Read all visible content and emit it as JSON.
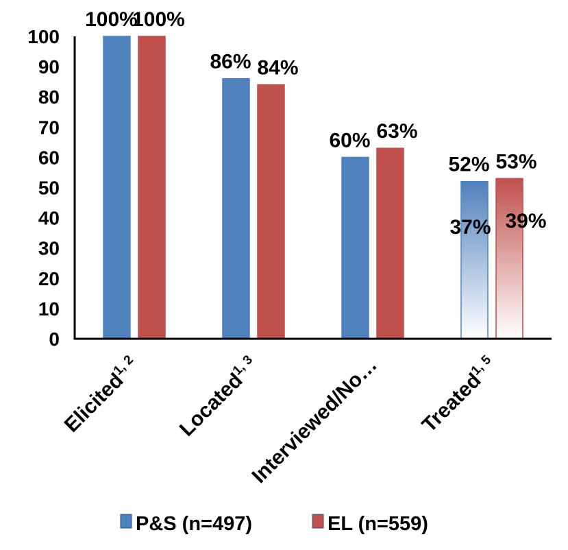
{
  "chart_data": {
    "type": "bar",
    "title": "",
    "xlabel": "",
    "ylabel": "",
    "ylim": [
      0,
      100
    ],
    "yticks": [
      0,
      10,
      20,
      30,
      40,
      50,
      60,
      70,
      80,
      90,
      100
    ],
    "grid": false,
    "legend": "bottom",
    "categories": [
      "Elicited",
      "Located",
      "Interviewed/No…",
      "Treated"
    ],
    "category_superscripts": [
      "1, 2",
      "1, 3",
      "",
      "1, 5"
    ],
    "series": [
      {
        "name": "P&S (n=497)",
        "color": "#4f81bd",
        "values": [
          100,
          86,
          60,
          52
        ],
        "labels": [
          "100%",
          "86%",
          "60%",
          "52%"
        ]
      },
      {
        "name": "EL (n=559)",
        "color": "#c0504d",
        "values": [
          100,
          84,
          63,
          53
        ],
        "labels": [
          "100%",
          "84%",
          "63%",
          "53%"
        ]
      }
    ],
    "annotations": [
      {
        "category": "Treated",
        "series": "P&S (n=497)",
        "value": 37,
        "label": "37%"
      },
      {
        "category": "Treated",
        "series": "EL (n=559)",
        "value": 39,
        "label": "39%"
      }
    ]
  }
}
